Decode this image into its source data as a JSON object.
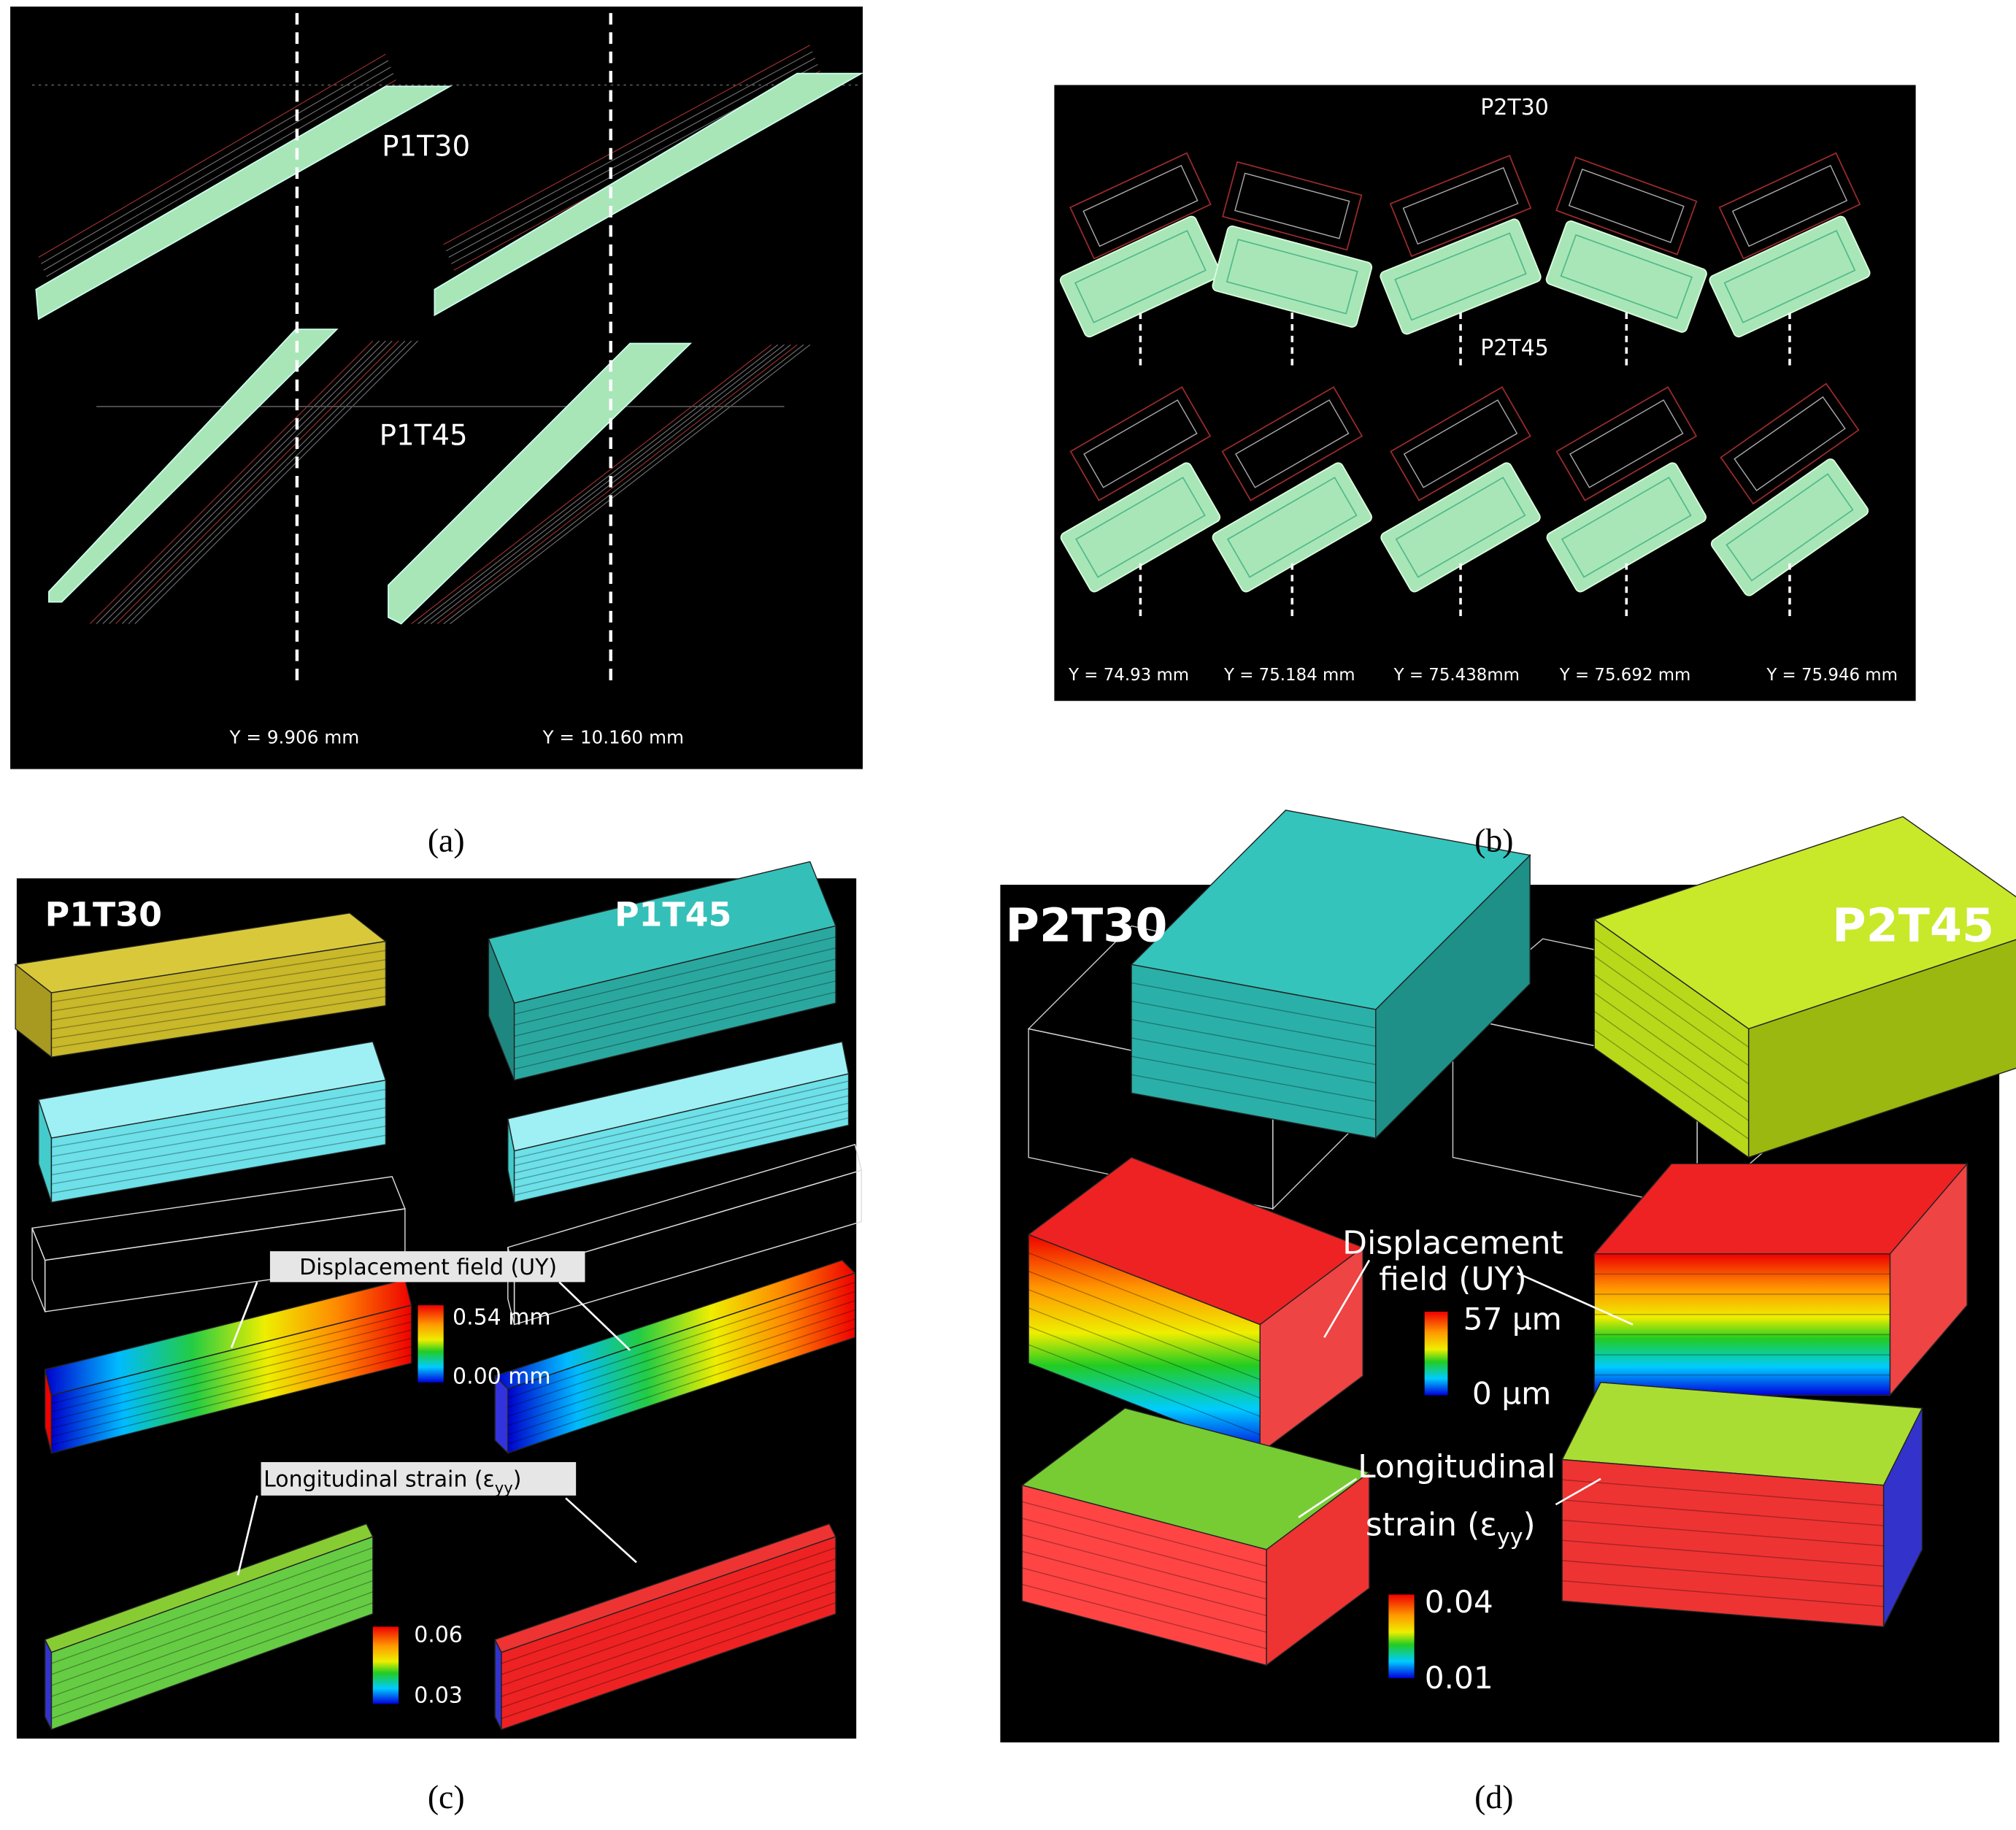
{
  "panels": [
    {
      "caption": "(a)",
      "labels": [
        "P1T30",
        "P1T45"
      ],
      "positions": [
        "Y = 9.906 mm",
        "Y = 10.160 mm"
      ]
    },
    {
      "caption": "(b)",
      "labels": [
        "P2T30",
        "P2T45"
      ],
      "positions": [
        "Y = 74.93 mm",
        "Y = 75.184 mm",
        "Y = 75.438mm",
        "Y = 75.692 mm",
        "Y = 75.946 mm"
      ]
    },
    {
      "caption": "(c)",
      "labels": [
        "P1T30",
        "P1T45"
      ],
      "displacement": {
        "title": "Displacement field (UY)",
        "max": "0.54 mm",
        "min": "0.00 mm"
      },
      "strain": {
        "title": "Longitudinal strain (ε",
        "subscript": "yy",
        "close": ")",
        "max": "0.06",
        "min": "0.03"
      }
    },
    {
      "caption": "(d)",
      "labels": [
        "P2T30",
        "P2T45"
      ],
      "displacement": {
        "title": "Displacement",
        "title2": "field (UY)",
        "max": "57 µm",
        "min": "0 µm"
      },
      "strain": {
        "title": "Longitudinal",
        "title2": "strain (ε",
        "subscript": "yy",
        "close": ")",
        "max": "0.04",
        "min": "0.01"
      }
    }
  ]
}
